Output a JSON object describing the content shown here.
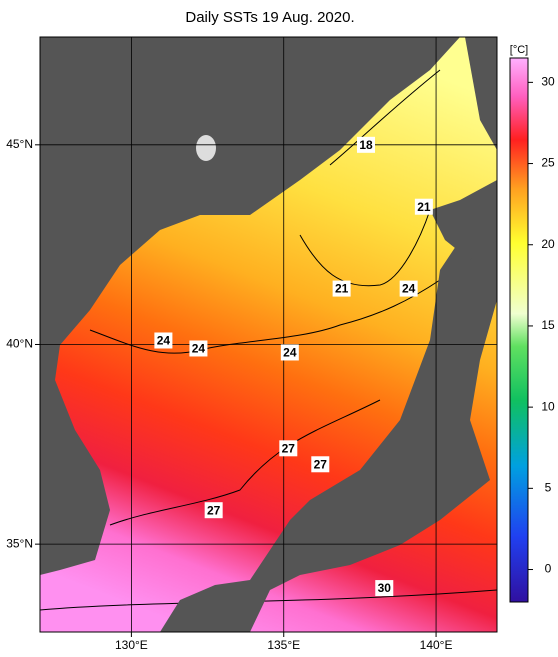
{
  "chart_data": {
    "type": "map",
    "title": "Daily SSTs 19 Aug. 2020.",
    "xlim": [
      127,
      142
    ],
    "ylim": [
      32.8,
      47.7
    ],
    "xticks": [
      {
        "value": 130,
        "label": "130°E"
      },
      {
        "value": 135,
        "label": "135°E"
      },
      {
        "value": 140,
        "label": "140°E"
      }
    ],
    "yticks": [
      {
        "value": 35,
        "label": "35°N"
      },
      {
        "value": 40,
        "label": "40°N"
      },
      {
        "value": 45,
        "label": "45°N"
      }
    ],
    "grid": true,
    "colorbar": {
      "label": "[°C]",
      "clim": [
        -2,
        31.5
      ],
      "ticks": [
        0,
        5,
        10,
        15,
        20,
        25,
        30
      ]
    },
    "contour_labels": [
      {
        "value": 18,
        "lon": 137.7,
        "lat": 45.0
      },
      {
        "value": 21,
        "lon": 139.6,
        "lat": 43.45
      },
      {
        "value": 21,
        "lon": 136.9,
        "lat": 41.4
      },
      {
        "value": 24,
        "lon": 139.1,
        "lat": 41.4
      },
      {
        "value": 24,
        "lon": 131.05,
        "lat": 40.1
      },
      {
        "value": 24,
        "lon": 132.2,
        "lat": 39.9
      },
      {
        "value": 24,
        "lon": 135.2,
        "lat": 39.8
      },
      {
        "value": 27,
        "lon": 135.15,
        "lat": 37.4
      },
      {
        "value": 27,
        "lon": 136.2,
        "lat": 37.0
      },
      {
        "value": 27,
        "lon": 132.7,
        "lat": 35.85
      },
      {
        "value": 30,
        "lon": 138.3,
        "lat": 33.9
      }
    ]
  }
}
